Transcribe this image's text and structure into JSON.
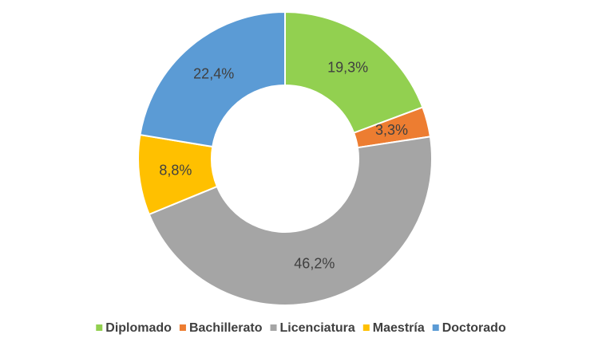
{
  "chart_data": {
    "type": "pie",
    "categories": [
      "Diplomado",
      "Bachillerato",
      "Licenciatura",
      "Maestría",
      "Doctorado"
    ],
    "values": [
      19.3,
      3.3,
      46.2,
      8.8,
      22.4
    ],
    "value_labels": [
      "19,3%",
      "3,3%",
      "46,2%",
      "8,8%",
      "22,4%"
    ],
    "colors": [
      "#92d050",
      "#ed7d31",
      "#a5a5a5",
      "#ffc000",
      "#5b9bd5"
    ],
    "donut": true,
    "legend": "bottom"
  }
}
